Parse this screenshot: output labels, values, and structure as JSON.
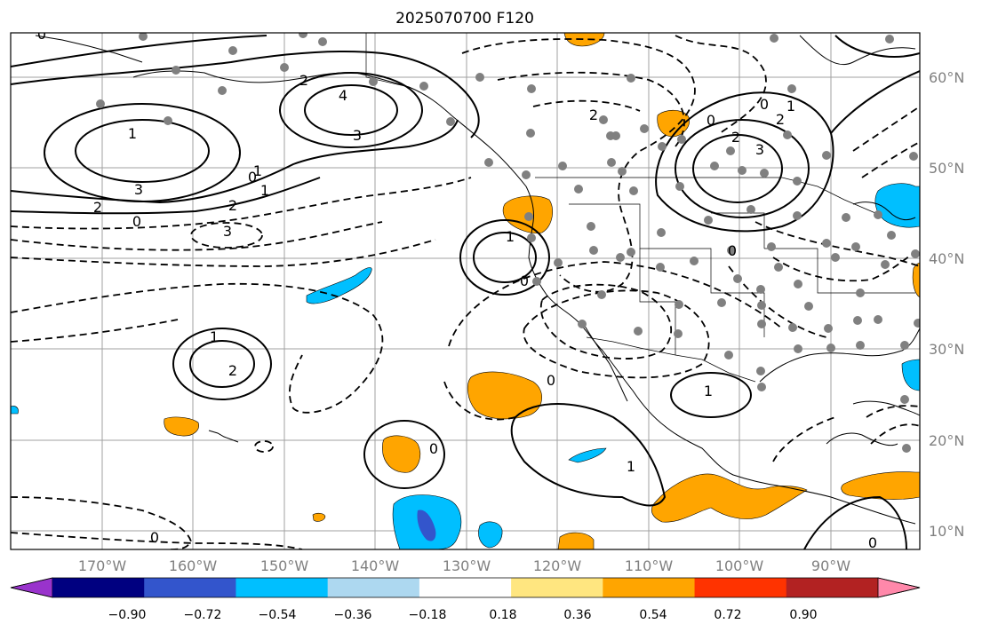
{
  "title": "2025070700 F120",
  "lon_ticks": [
    "170°W",
    "160°W",
    "150°W",
    "140°W",
    "130°W",
    "120°W",
    "110°W",
    "100°W",
    "90°W"
  ],
  "lat_ticks": [
    "60°N",
    "50°N",
    "40°N",
    "30°N",
    "20°N",
    "10°N"
  ],
  "colorbar": {
    "colors": [
      "#9933cc",
      "#000080",
      "#3355cc",
      "#00bfff",
      "#add8f0",
      "#ffffff",
      "#ffe680",
      "#ffa500",
      "#ff3300",
      "#b22222",
      "#ff88aa"
    ],
    "tick_labels": [
      "−0.90",
      "−0.72",
      "−0.54",
      "−0.36",
      "−0.18",
      "0.18",
      "0.36",
      "0.54",
      "0.72",
      "0.90"
    ]
  },
  "contour_labels": [
    "0",
    "2",
    "4",
    "3",
    "1",
    "2",
    "3",
    "0",
    "1",
    "2",
    "3",
    "0",
    "1",
    "0",
    "2",
    "2",
    "1",
    "2",
    "0",
    "0",
    "0",
    "1",
    "1",
    "1",
    "0",
    "2",
    "3",
    "0",
    "1",
    "0",
    "0"
  ],
  "colors": {
    "contour": "#000000",
    "grid": "#a0a0a0",
    "station_dot": "#808080",
    "positive_fill": "#ffa500",
    "negative_fill": "#00bfff",
    "strong_negative_fill": "#3355cc"
  }
}
